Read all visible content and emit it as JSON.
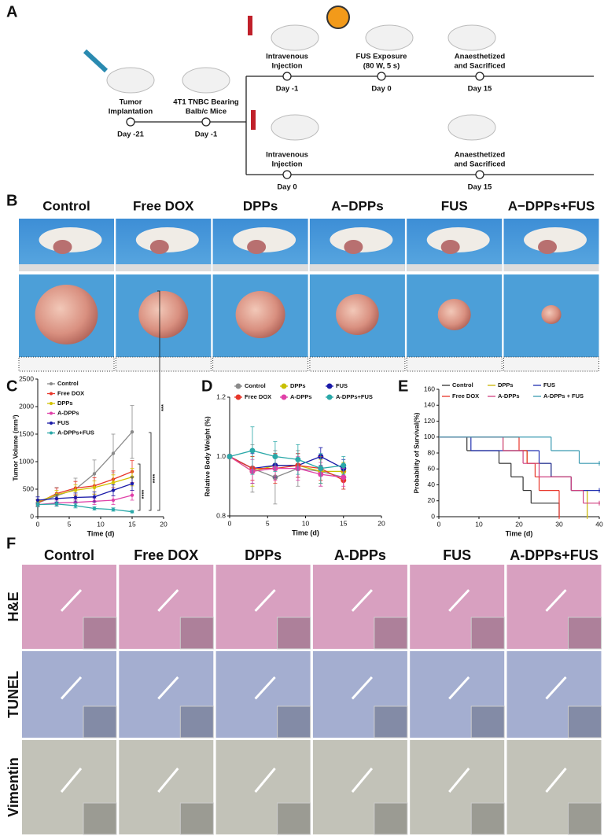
{
  "panel_a": {
    "label": "A",
    "steps": [
      {
        "title": [
          "Tumor",
          "Implantation"
        ],
        "day": "Day -21"
      },
      {
        "title": [
          "4T1 TNBC Bearing",
          "Balb/c Mice"
        ],
        "day": "Day -1"
      },
      {
        "title": [
          "Intravenous",
          "Injection"
        ],
        "day": "Day -1"
      },
      {
        "title": [
          "FUS Exposure",
          "(80 W, 5 s)"
        ],
        "day": "Day 0"
      },
      {
        "title": [
          "Anaesthetized",
          "and Sacrificed"
        ],
        "day": "Day 15"
      },
      {
        "title": [
          "Intravenous",
          "Injection"
        ],
        "day": "Day 0"
      },
      {
        "title": [
          "Anaesthetized",
          "and Sacrificed"
        ],
        "day": "Day 15"
      }
    ]
  },
  "panel_b": {
    "label": "B",
    "groups": [
      "Control",
      "Free DOX",
      "DPPs",
      "A−DPPs",
      "FUS",
      "A−DPPs+FUS"
    ]
  },
  "panel_f": {
    "label": "F",
    "groups": [
      "Control",
      "Free DOX",
      "DPPs",
      "A-DPPs",
      "FUS",
      "A-DPPs+FUS"
    ],
    "stains": [
      "H&E",
      "TUNEL",
      "Vimentin"
    ]
  },
  "chart_data": [
    {
      "type": "line",
      "label": "C",
      "xlabel": "Time (d)",
      "ylabel": "Tumor Volume (mm³)",
      "x": [
        0,
        3,
        6,
        9,
        12,
        15
      ],
      "xlim": [
        0,
        20
      ],
      "xticks": [
        0,
        5,
        10,
        15,
        20
      ],
      "ylim": [
        0,
        2500
      ],
      "yticks": [
        0,
        500,
        1000,
        1500,
        2000,
        2500
      ],
      "annotations": [
        "****",
        "****",
        "***"
      ],
      "series": [
        {
          "name": "Control",
          "color": "#8a8a8a",
          "values": [
            250,
            380,
            500,
            780,
            1150,
            1540
          ],
          "errors": [
            60,
            150,
            200,
            250,
            350,
            480
          ]
        },
        {
          "name": "Free DOX",
          "color": "#e8362a",
          "values": [
            250,
            420,
            520,
            560,
            680,
            820
          ],
          "errors": [
            50,
            100,
            120,
            150,
            150,
            200
          ]
        },
        {
          "name": "DPPs",
          "color": "#d2c200",
          "values": [
            270,
            400,
            480,
            530,
            620,
            720
          ],
          "errors": [
            50,
            80,
            100,
            120,
            140,
            160
          ]
        },
        {
          "name": "A-DPPs",
          "color": "#e040a8",
          "values": [
            220,
            250,
            260,
            280,
            300,
            390
          ],
          "errors": [
            40,
            50,
            60,
            60,
            80,
            90
          ]
        },
        {
          "name": "FUS",
          "color": "#1a1aa8",
          "values": [
            300,
            330,
            350,
            360,
            480,
            600
          ],
          "errors": [
            60,
            70,
            80,
            90,
            100,
            120
          ]
        },
        {
          "name": "A-DPPs+FUS",
          "color": "#2aa8a8",
          "values": [
            220,
            230,
            200,
            150,
            130,
            90
          ],
          "errors": [
            40,
            40,
            40,
            30,
            30,
            20
          ]
        }
      ]
    },
    {
      "type": "line",
      "label": "D",
      "xlabel": "Time (d)",
      "ylabel": "Relative Body Weight (%)",
      "x": [
        0,
        3,
        6,
        9,
        12,
        15
      ],
      "xlim": [
        0,
        20
      ],
      "xticks": [
        0,
        5,
        10,
        15,
        20
      ],
      "ylim": [
        0.8,
        1.2
      ],
      "yticks": [
        0.8,
        {
          "value": 1,
          "label": "1.0"
        },
        1.2
      ],
      "series": [
        {
          "name": "Control",
          "color": "#8a8a8a",
          "values": [
            1.0,
            0.96,
            0.93,
            0.96,
            0.95,
            0.93
          ],
          "errors": [
            0,
            0.08,
            0.09,
            0.06,
            0.05,
            0.04
          ]
        },
        {
          "name": "DPPs",
          "color": "#c8c000",
          "values": [
            1.0,
            0.95,
            0.97,
            0.97,
            0.95,
            0.95
          ],
          "errors": [
            0,
            0.05,
            0.04,
            0.04,
            0.04,
            0.03
          ]
        },
        {
          "name": "FUS",
          "color": "#1a1aa8",
          "values": [
            1.0,
            0.96,
            0.97,
            0.97,
            1.0,
            0.96
          ],
          "errors": [
            0,
            0.05,
            0.04,
            0.04,
            0.03,
            0.03
          ]
        },
        {
          "name": "Free DOX",
          "color": "#e8362a",
          "values": [
            1.0,
            0.96,
            0.96,
            0.97,
            0.96,
            0.92
          ],
          "errors": [
            0,
            0.04,
            0.05,
            0.04,
            0.04,
            0.03
          ]
        },
        {
          "name": "A-DPPs",
          "color": "#e040a8",
          "values": [
            1.0,
            0.95,
            0.96,
            0.96,
            0.94,
            0.93
          ],
          "errors": [
            0,
            0.04,
            0.04,
            0.04,
            0.04,
            0.03
          ]
        },
        {
          "name": "A-DPPs+FUS",
          "color": "#2aa8a8",
          "values": [
            1.0,
            1.02,
            1.0,
            0.99,
            0.96,
            0.97
          ],
          "errors": [
            0,
            0.08,
            0.05,
            0.05,
            0.05,
            0.03
          ]
        }
      ]
    },
    {
      "type": "step",
      "label": "E",
      "xlabel": "Time (d)",
      "ylabel": "Probability of Survival(%)",
      "xlim": [
        0,
        40
      ],
      "xticks": [
        0,
        10,
        20,
        30,
        40
      ],
      "ylim": [
        0,
        160
      ],
      "yticks": [
        0,
        20,
        40,
        60,
        80,
        100,
        120,
        140,
        160
      ],
      "series": [
        {
          "name": "Control",
          "color": "#333333",
          "x": [
            0,
            7,
            15,
            18,
            21,
            23,
            30
          ],
          "values": [
            100,
            83,
            67,
            50,
            33,
            17,
            0
          ]
        },
        {
          "name": "DPPs",
          "color": "#c8b400",
          "x": [
            0,
            16,
            22,
            28,
            33,
            37
          ],
          "values": [
            100,
            83,
            67,
            50,
            33,
            0
          ]
        },
        {
          "name": "FUS",
          "color": "#2030b0",
          "x": [
            0,
            8,
            25,
            28,
            33,
            40
          ],
          "values": [
            100,
            83,
            67,
            50,
            33,
            33
          ]
        },
        {
          "name": "Free DOX",
          "color": "#e8362a",
          "x": [
            0,
            20,
            22,
            24,
            25,
            30
          ],
          "values": [
            100,
            83,
            67,
            50,
            33,
            0
          ]
        },
        {
          "name": "A-DPPs",
          "color": "#d04080",
          "x": [
            0,
            16,
            21,
            25,
            33,
            36,
            40
          ],
          "values": [
            100,
            83,
            67,
            50,
            33,
            17,
            17
          ]
        },
        {
          "name": "A-DPPs + FUS",
          "color": "#3a9ab0",
          "x": [
            0,
            28,
            35,
            40
          ],
          "values": [
            100,
            83,
            67,
            67
          ]
        }
      ]
    }
  ]
}
